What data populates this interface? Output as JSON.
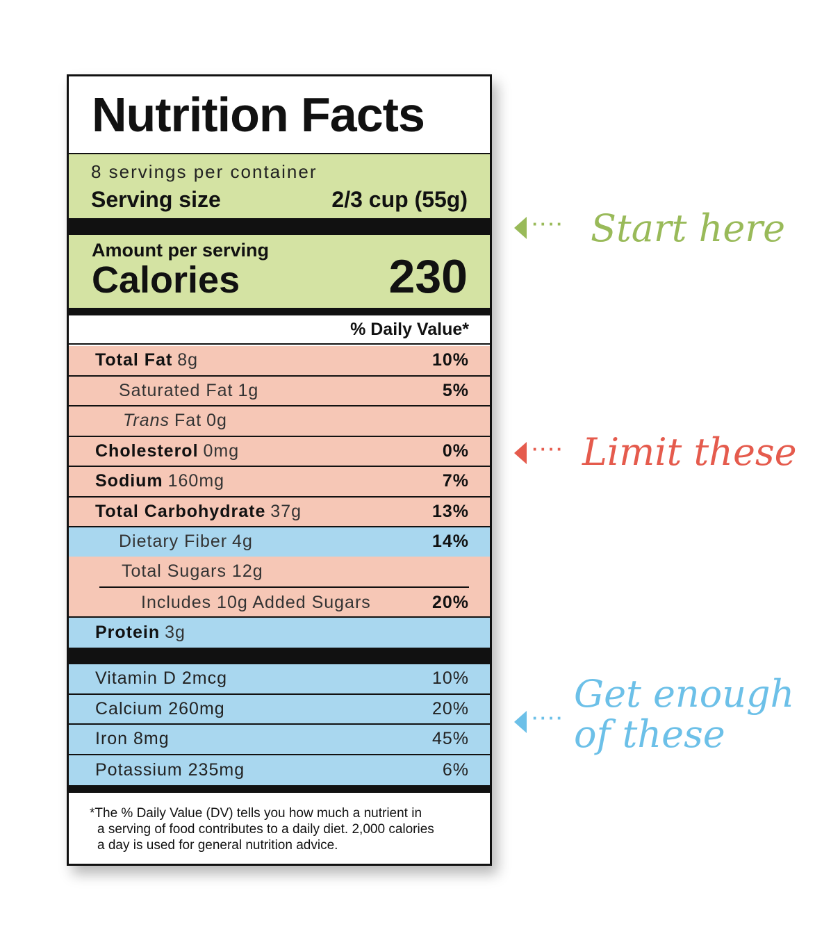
{
  "label": {
    "title": "Nutrition Facts",
    "servings_per_container": "8 servings per container",
    "serving_size_label": "Serving size",
    "serving_size_value": "2/3 cup (55g)",
    "amount_per_serving": "Amount per serving",
    "calories_label": "Calories",
    "calories_value": "230",
    "daily_value_header": "% Daily Value*",
    "nutrients": [
      {
        "name": "Total Fat",
        "amount": "8g",
        "dv": "10%"
      },
      {
        "name": "Saturated Fat",
        "amount": "1g",
        "dv": "5%"
      },
      {
        "name_italic": "Trans",
        "name": "Fat",
        "amount": "0g",
        "dv": ""
      },
      {
        "name": "Cholesterol",
        "amount": "0mg",
        "dv": "0%"
      },
      {
        "name": "Sodium",
        "amount": "160mg",
        "dv": "7%"
      },
      {
        "name": "Total Carbohydrate",
        "amount": "37g",
        "dv": "13%"
      },
      {
        "name": "Dietary Fiber",
        "amount": "4g",
        "dv": "14%"
      },
      {
        "name": "Total Sugars",
        "amount": "12g",
        "dv": ""
      },
      {
        "name": "Includes 10g Added Sugars",
        "amount": "",
        "dv": "20%"
      },
      {
        "name": "Protein",
        "amount": "3g",
        "dv": ""
      }
    ],
    "vitamins": [
      {
        "name": "Vitamin D 2mcg",
        "dv": "10%"
      },
      {
        "name": "Calcium 260mg",
        "dv": "20%"
      },
      {
        "name": "Iron 8mg",
        "dv": "45%"
      },
      {
        "name": "Potassium 235mg",
        "dv": "6%"
      }
    ],
    "footnote_lines": [
      "*The % Daily Value (DV) tells you how much a nutrient in",
      "a serving of food contributes to a daily diet. 2,000 calories",
      "a day is used for general nutrition advice."
    ]
  },
  "callouts": {
    "start": "Start here",
    "limit": "Limit these",
    "get": "Get enough\nof these"
  },
  "colors": {
    "green_band": "#d4e3a3",
    "limit_band": "#f6c7b6",
    "get_band": "#a9d7ef",
    "start_text": "#99ba59",
    "limit_text": "#e55b4d",
    "get_text": "#6cc0e8"
  },
  "arrow_dots": "····"
}
